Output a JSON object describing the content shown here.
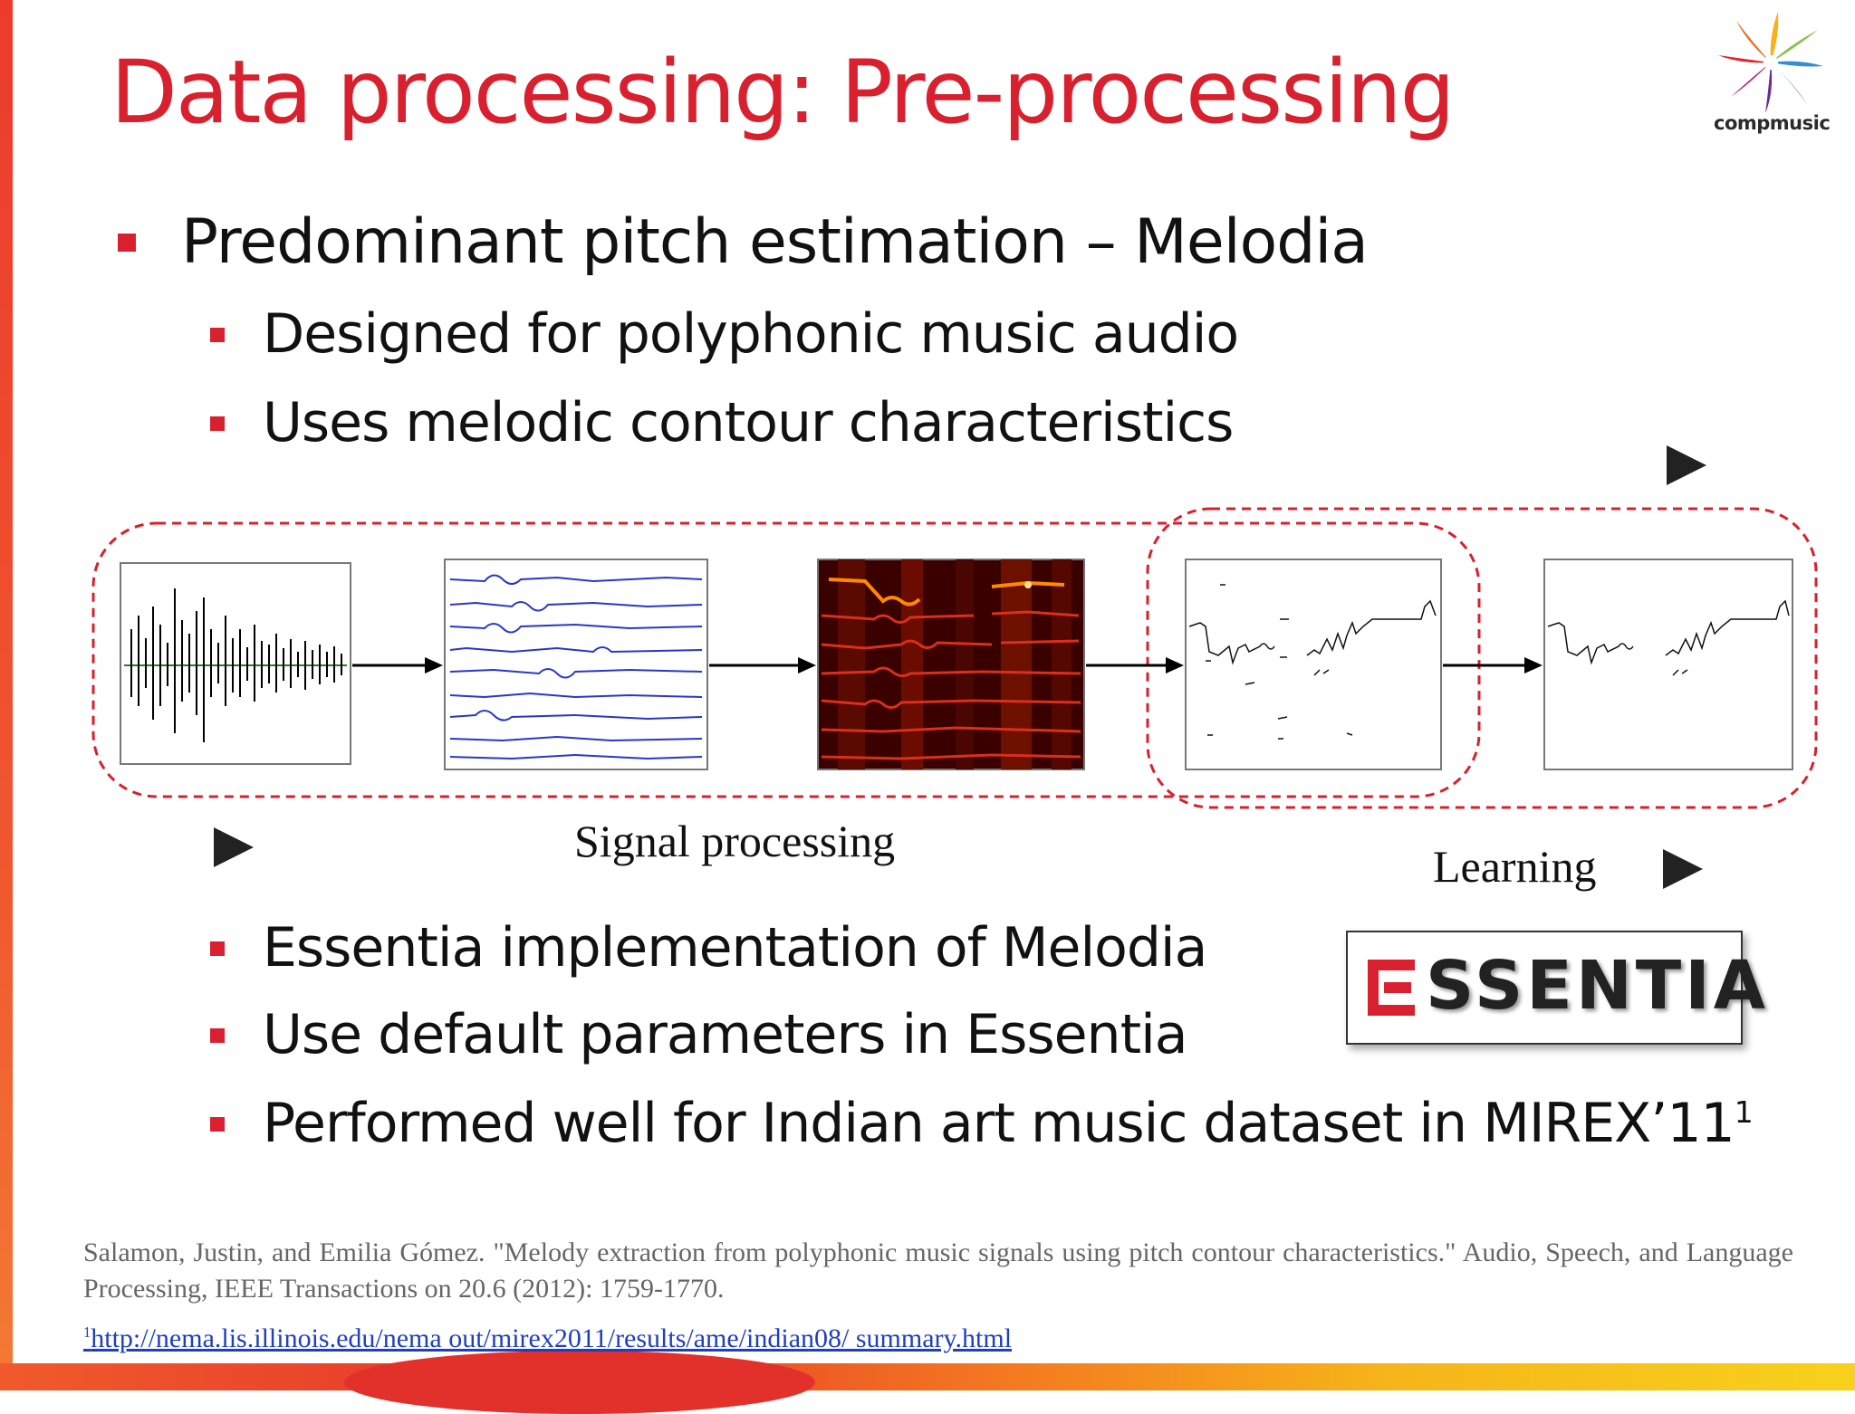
{
  "slide": {
    "title": "Data processing: Pre-processing",
    "logo_text": "compmusic"
  },
  "bullets": {
    "main": "Predominant pitch estimation – Melodia",
    "sub1": "Designed for polyphonic music audio",
    "sub2": "Uses melodic contour characteristics",
    "sub3": "Essentia implementation of Melodia",
    "sub4": "Use default parameters in Essentia",
    "sub5": "Performed well for Indian art music dataset in MIREX’11",
    "sub5_sup": "1"
  },
  "diagram": {
    "signal_caption": "Signal processing",
    "learning_caption": "Learning"
  },
  "essentia_logo": {
    "text": "SSENTIA"
  },
  "footer": {
    "reference": "Salamon, Justin, and Emilia Gómez. \"Melody extraction from polyphonic music signals using pitch contour characteristics.\" Audio, Speech, and Language Processing, IEEE Transactions on 20.6 (2012): 1759-1770.",
    "link_sup": "1",
    "link_text": "http://nema.lis.illinois.edu/nema out/mirex2011/results/ame/indian08/ summary.html"
  },
  "colors": {
    "accent": "#d8202e",
    "dashed_box": "#d8202e"
  }
}
